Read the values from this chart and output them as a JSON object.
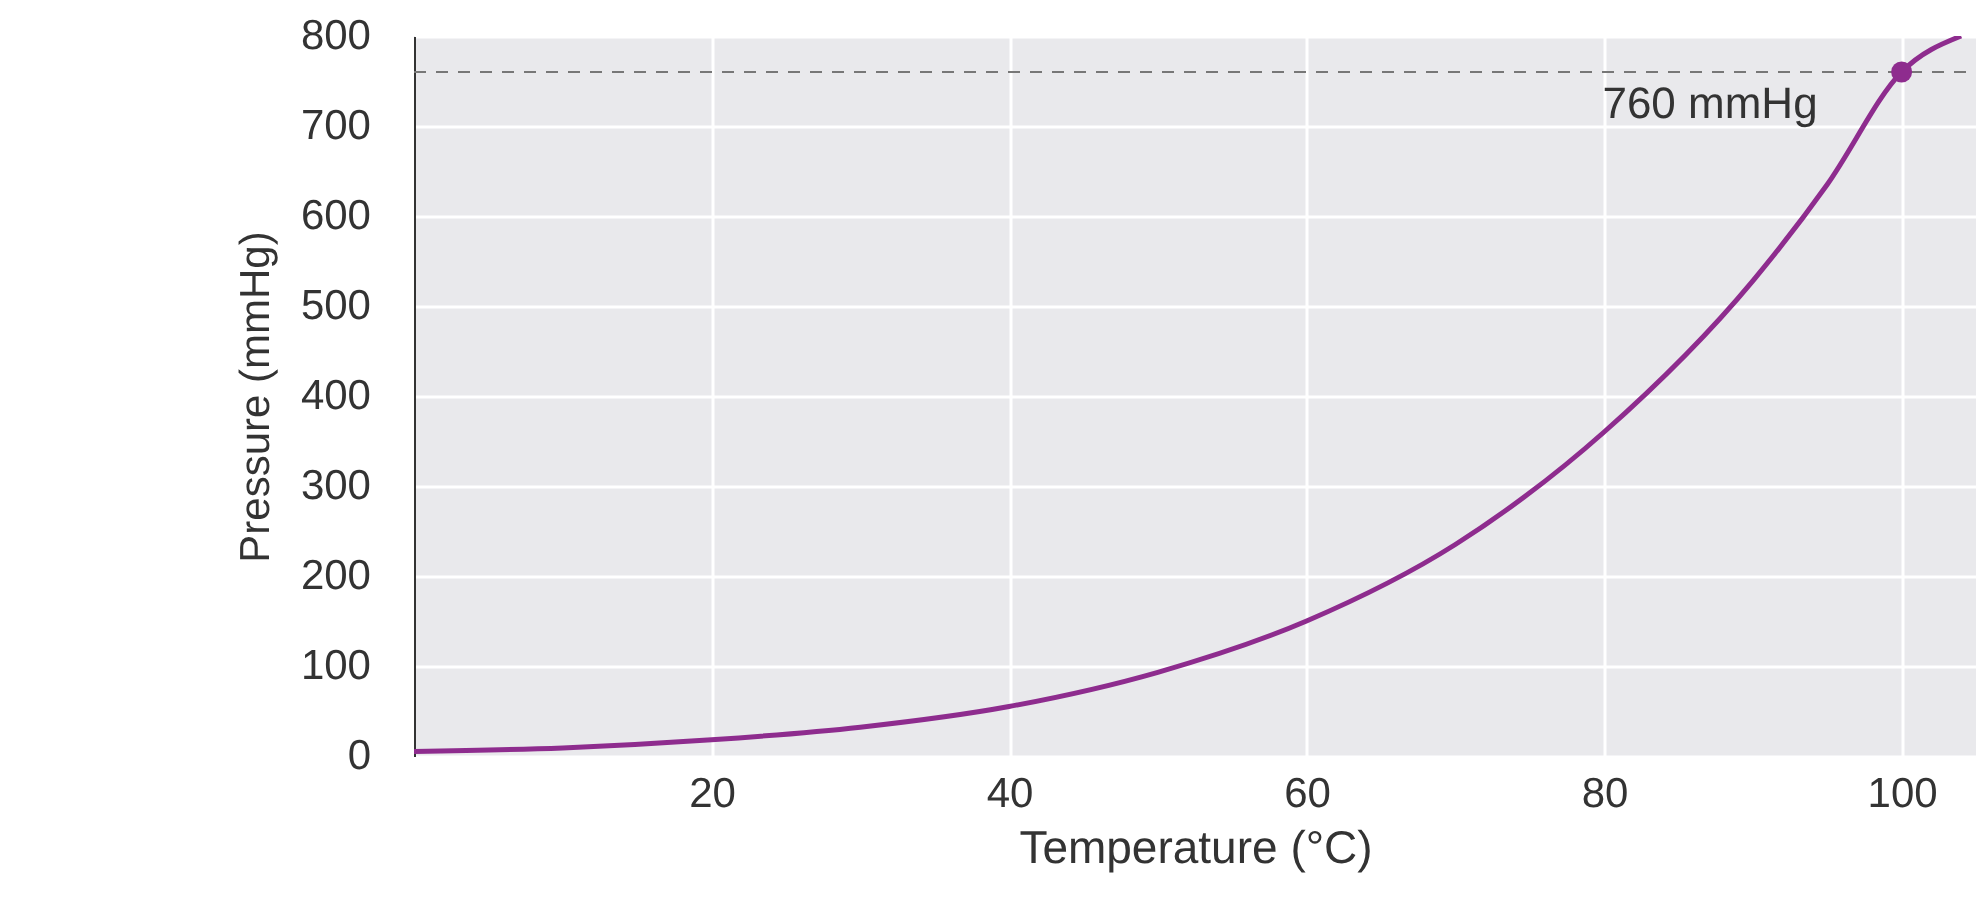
{
  "chart_data": {
    "type": "line",
    "xlabel": "Temperature (°C)",
    "ylabel": "Pressure (mmHg)",
    "xlim": [
      0,
      105
    ],
    "ylim": [
      0,
      800
    ],
    "xticks": [
      20,
      40,
      60,
      80,
      100
    ],
    "yticks": [
      0,
      100,
      200,
      300,
      400,
      500,
      600,
      700,
      800
    ],
    "grid": true,
    "series": [
      {
        "color": "#8e2c8e",
        "x": [
          0,
          10,
          20,
          30,
          40,
          50,
          60,
          70,
          80,
          90,
          95,
          100,
          104
        ],
        "values": [
          5,
          9,
          18,
          32,
          55,
          93,
          150,
          235,
          360,
          528,
          635,
          760,
          800
        ]
      },
      {
        "type": "scatter",
        "color": "#8e2c8e",
        "marker": "circle",
        "x": [
          100
        ],
        "values": [
          760
        ]
      }
    ],
    "ref_lines": [
      {
        "axis": "y",
        "value": 760,
        "line_style": "dashed",
        "color": "#777777"
      }
    ],
    "annotations": [
      {
        "text": "760 mmHg",
        "x": 100,
        "y": 760
      }
    ]
  }
}
